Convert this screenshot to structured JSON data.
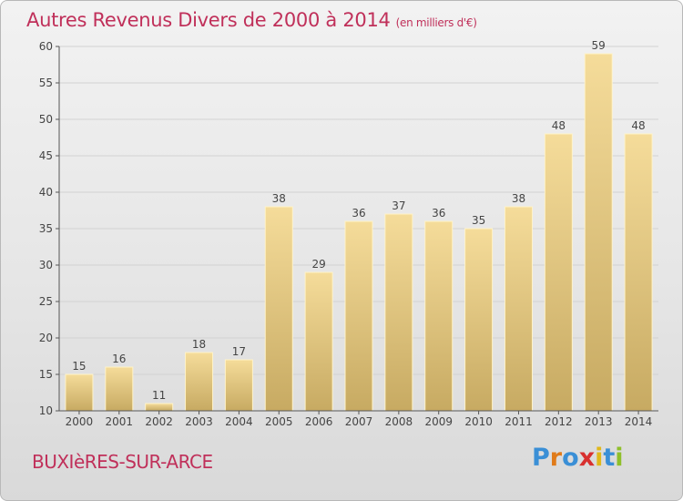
{
  "title": "Autres Revenus Divers de 2000 à 2014",
  "subtitle": "(en milliers d'€)",
  "place": "BUXIèRES-SUR-ARCE",
  "logo": {
    "letters": [
      "P",
      "r",
      "o",
      "x",
      "i",
      "t",
      "i"
    ],
    "colors": [
      "#3a8fd6",
      "#e07b1a",
      "#3a8fd6",
      "#d8302f",
      "#e0b81a",
      "#3a8fd6",
      "#8fbf2a"
    ]
  },
  "colors": {
    "title": "#c0305a",
    "bar_top": "#f5dc9a",
    "bar_bottom": "#c7aa62",
    "grid": "#d2d2d2",
    "axis": "#555555"
  },
  "chart_data": {
    "type": "bar",
    "categories": [
      "2000",
      "2001",
      "2002",
      "2003",
      "2004",
      "2005",
      "2006",
      "2007",
      "2008",
      "2009",
      "2010",
      "2011",
      "2012",
      "2013",
      "2014"
    ],
    "values": [
      15,
      16,
      11,
      18,
      17,
      38,
      29,
      36,
      37,
      36,
      35,
      38,
      48,
      59,
      48
    ],
    "yticks": [
      "10",
      "15",
      "20",
      "25",
      "30",
      "35",
      "40",
      "45",
      "50",
      "55",
      "60"
    ],
    "ylim": [
      10,
      60
    ],
    "grid": true
  }
}
